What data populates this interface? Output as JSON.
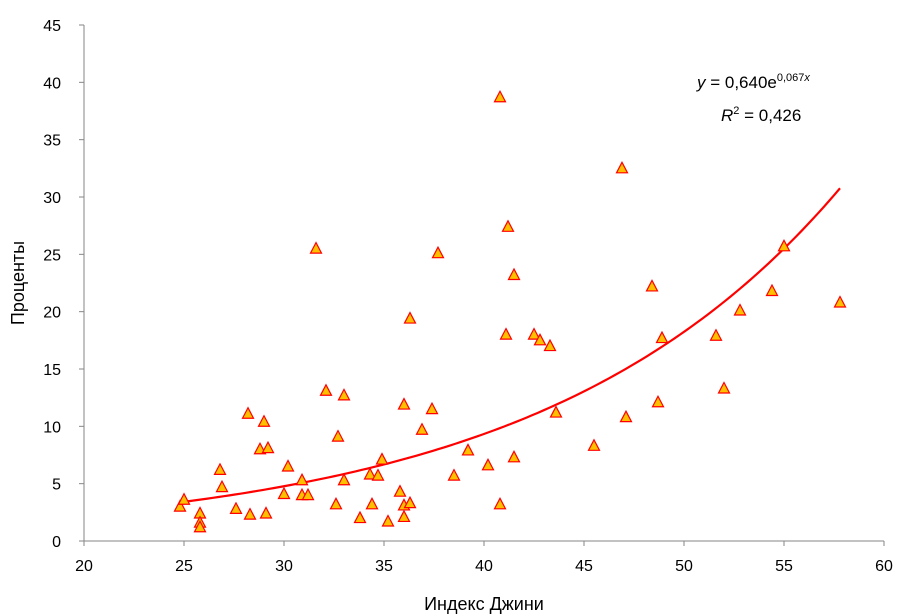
{
  "chart_data": {
    "type": "scatter",
    "xlabel": "Индекс Джини",
    "ylabel": "Проценты",
    "xlim": [
      20,
      60
    ],
    "ylim": [
      0,
      45
    ],
    "xticks": [
      "20",
      "25",
      "30",
      "35",
      "40",
      "45",
      "50",
      "55",
      "60"
    ],
    "yticks": [
      "0",
      "5",
      "10",
      "15",
      "20",
      "25",
      "30",
      "35",
      "40",
      "45"
    ],
    "grid": false,
    "legend": "none",
    "marker": "triangle",
    "marker_fill": "#FFC000",
    "marker_edge": "#FF0000",
    "trendline": {
      "type": "exponential",
      "a": 0.64,
      "b": 0.067,
      "color": "#FF0000",
      "x_range": [
        24.8,
        57.8
      ]
    },
    "equation": {
      "y_var": "y",
      "eq_text": " = 0,640e",
      "exponent_coef": "0,067",
      "exponent_var": "x",
      "r_var": "R",
      "r_sup": "2",
      "r_text": " = 0,426"
    },
    "points": [
      [
        24.8,
        3.0
      ],
      [
        25.0,
        3.6
      ],
      [
        25.8,
        2.4
      ],
      [
        25.8,
        1.6
      ],
      [
        25.8,
        1.2
      ],
      [
        26.8,
        6.2
      ],
      [
        26.9,
        4.7
      ],
      [
        27.6,
        2.8
      ],
      [
        28.2,
        11.1
      ],
      [
        28.3,
        2.3
      ],
      [
        28.8,
        8.0
      ],
      [
        29.0,
        10.4
      ],
      [
        29.1,
        2.4
      ],
      [
        29.2,
        8.1
      ],
      [
        30.0,
        4.1
      ],
      [
        30.2,
        6.5
      ],
      [
        30.9,
        4.0
      ],
      [
        30.9,
        5.3
      ],
      [
        31.2,
        4.0
      ],
      [
        31.6,
        25.5
      ],
      [
        32.1,
        13.1
      ],
      [
        32.6,
        3.2
      ],
      [
        32.7,
        9.1
      ],
      [
        33.0,
        12.7
      ],
      [
        33.0,
        5.3
      ],
      [
        33.8,
        2.0
      ],
      [
        34.3,
        5.8
      ],
      [
        34.4,
        3.2
      ],
      [
        34.7,
        5.7
      ],
      [
        34.9,
        7.1
      ],
      [
        35.2,
        1.7
      ],
      [
        35.8,
        4.3
      ],
      [
        36.0,
        11.9
      ],
      [
        36.0,
        3.1
      ],
      [
        36.0,
        2.1
      ],
      [
        36.3,
        19.4
      ],
      [
        36.3,
        3.3
      ],
      [
        36.9,
        9.7
      ],
      [
        37.4,
        11.5
      ],
      [
        37.7,
        25.1
      ],
      [
        38.5,
        5.7
      ],
      [
        39.2,
        7.9
      ],
      [
        40.2,
        6.6
      ],
      [
        40.8,
        38.7
      ],
      [
        40.8,
        3.2
      ],
      [
        41.1,
        18.0
      ],
      [
        41.2,
        27.4
      ],
      [
        41.5,
        23.2
      ],
      [
        41.5,
        7.3
      ],
      [
        42.5,
        18.0
      ],
      [
        42.8,
        17.5
      ],
      [
        43.3,
        17.0
      ],
      [
        43.6,
        11.2
      ],
      [
        45.5,
        8.3
      ],
      [
        46.9,
        32.5
      ],
      [
        47.1,
        10.8
      ],
      [
        48.4,
        22.2
      ],
      [
        48.7,
        12.1
      ],
      [
        48.9,
        17.7
      ],
      [
        51.6,
        17.9
      ],
      [
        52.0,
        13.3
      ],
      [
        52.8,
        20.1
      ],
      [
        54.4,
        21.8
      ],
      [
        55.0,
        25.7
      ],
      [
        57.8,
        20.8
      ]
    ]
  }
}
